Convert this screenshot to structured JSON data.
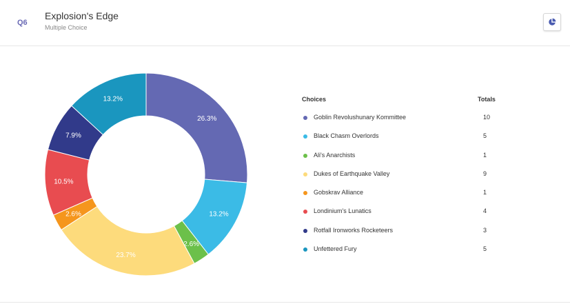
{
  "question": {
    "number": "Q6",
    "title": "Explosion's Edge",
    "type": "Multiple Choice"
  },
  "chart_toggle_icon": "pie-chart-icon",
  "table": {
    "header_choices": "Choices",
    "header_totals": "Totals"
  },
  "chart_data": {
    "type": "pie",
    "donut": true,
    "slices": [
      {
        "label": "Goblin Revolushunary Kommittee",
        "value": 10,
        "percent_label": "26.3%",
        "color": "#6469b3"
      },
      {
        "label": "Black Chasm Overlords",
        "value": 5,
        "percent_label": "13.2%",
        "color": "#3bbbe6"
      },
      {
        "label": "Ali's Anarchists",
        "value": 1,
        "percent_label": "2.6%",
        "color": "#6cc04a"
      },
      {
        "label": "Dukes of Earthquake Valley",
        "value": 9,
        "percent_label": "23.7%",
        "color": "#fddb7c"
      },
      {
        "label": "Gobskrav Alliance",
        "value": 1,
        "percent_label": "2.6%",
        "color": "#f5961d"
      },
      {
        "label": "Londinium's Lunatics",
        "value": 4,
        "percent_label": "10.5%",
        "color": "#e84c50"
      },
      {
        "label": "Rotfall Ironworks Rocketeers",
        "value": 3,
        "percent_label": "7.9%",
        "color": "#313a8a"
      },
      {
        "label": "Unfettered Fury",
        "value": 5,
        "percent_label": "13.2%",
        "color": "#1a96bf"
      }
    ]
  }
}
